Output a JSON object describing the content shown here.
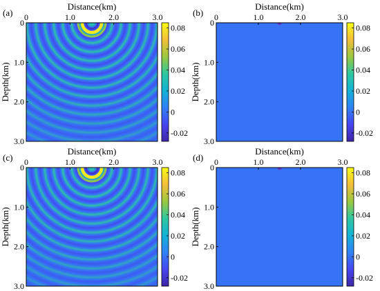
{
  "colorbar": {
    "ticks": [
      {
        "label": "0.08",
        "value": 0.08
      },
      {
        "label": "0.06",
        "value": 0.06
      },
      {
        "label": "0.04",
        "value": 0.04
      },
      {
        "label": "0.02",
        "value": 0.02
      },
      {
        "label": "0",
        "value": 0
      },
      {
        "label": "-0.02",
        "value": -0.02
      }
    ],
    "range": [
      -0.028,
      0.085
    ],
    "colors": [
      "#3e26a8",
      "#4746f0",
      "#2f82f6",
      "#14b3d6",
      "#2ec8a0",
      "#9bc83f",
      "#f3be3a",
      "#f9fb15"
    ]
  },
  "chart_data": [
    {
      "type": "heatmap",
      "panel_label": "(a)",
      "xlabel": "Distance(km)",
      "ylabel": "Depth(km)",
      "xlim": [
        0,
        3.0
      ],
      "ylim": [
        3.0,
        0
      ],
      "x_ticks": [
        {
          "label": "0",
          "value": 0
        },
        {
          "label": "1.0",
          "value": 1.0
        },
        {
          "label": "2.0",
          "value": 2.0
        },
        {
          "label": "3.0",
          "value": 3.0
        }
      ],
      "y_ticks": [
        {
          "label": "0",
          "value": 0
        },
        {
          "label": "1.0",
          "value": 1.0
        },
        {
          "label": "2.0",
          "value": 2.0
        },
        {
          "label": "3.0",
          "value": 3.0
        }
      ],
      "source_km": [
        1.5,
        0.0
      ],
      "field": "circular-wavefronts",
      "background_value": 0.0,
      "peak_value": 0.08,
      "trough_value": -0.02
    },
    {
      "type": "heatmap",
      "panel_label": "(b)",
      "xlabel": "Distance(km)",
      "ylabel": "Depth(km)",
      "xlim": [
        0,
        3.0
      ],
      "ylim": [
        3.0,
        0
      ],
      "x_ticks": [
        {
          "label": "0",
          "value": 0
        },
        {
          "label": "1.0",
          "value": 1.0
        },
        {
          "label": "2.0",
          "value": 2.0
        },
        {
          "label": "3.0",
          "value": 3.0
        }
      ],
      "y_ticks": [
        {
          "label": "0",
          "value": 0
        },
        {
          "label": "1.0",
          "value": 1.0
        },
        {
          "label": "2.0",
          "value": 2.0
        },
        {
          "label": "3.0",
          "value": 3.0
        }
      ],
      "source_km": [
        1.5,
        0.0
      ],
      "field": "near-source-only",
      "background_value": 0.0,
      "peak_value": -0.02
    },
    {
      "type": "heatmap",
      "panel_label": "(c)",
      "xlabel": "Distance(km)",
      "ylabel": "Depth(km)",
      "xlim": [
        0,
        3.0
      ],
      "ylim": [
        3.0,
        0
      ],
      "x_ticks": [
        {
          "label": "0",
          "value": 0
        },
        {
          "label": "1.0",
          "value": 1.0
        },
        {
          "label": "2.0",
          "value": 2.0
        },
        {
          "label": "3.0",
          "value": 3.0
        }
      ],
      "y_ticks": [
        {
          "label": "0",
          "value": 0
        },
        {
          "label": "1.0",
          "value": 1.0
        },
        {
          "label": "2.0",
          "value": 2.0
        },
        {
          "label": "3.0",
          "value": 3.0
        }
      ],
      "source_km": [
        1.5,
        0.0
      ],
      "field": "circular-wavefronts",
      "background_value": 0.0,
      "peak_value": 0.08,
      "trough_value": -0.02
    },
    {
      "type": "heatmap",
      "panel_label": "(d)",
      "xlabel": "Distance(km)",
      "ylabel": "Depth(km)",
      "xlim": [
        0,
        3.0
      ],
      "ylim": [
        3.0,
        0
      ],
      "x_ticks": [
        {
          "label": "0",
          "value": 0
        },
        {
          "label": "1.0",
          "value": 1.0
        },
        {
          "label": "2.0",
          "value": 2.0
        },
        {
          "label": "3.0",
          "value": 3.0
        }
      ],
      "y_ticks": [
        {
          "label": "0",
          "value": 0
        },
        {
          "label": "1.0",
          "value": 1.0
        },
        {
          "label": "2.0",
          "value": 2.0
        },
        {
          "label": "3.0",
          "value": 3.0
        }
      ],
      "source_km": [
        1.5,
        0.0
      ],
      "field": "near-source-only",
      "background_value": 0.0,
      "peak_value": -0.02
    }
  ]
}
